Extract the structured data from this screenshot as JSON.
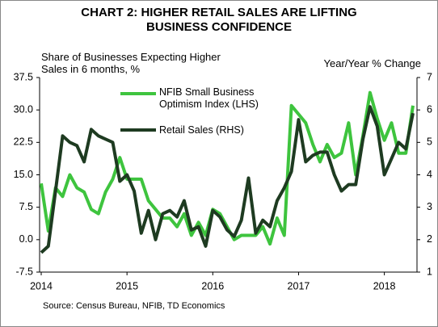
{
  "chart_data": {
    "type": "line",
    "title": "CHART 2: HIGHER RETAIL SALES ARE LIFTING BUSINESS CONFIDENCE",
    "y_label": "Share of Businesses Expecting Higher Sales in 6 months, %",
    "y2_label": "Year/Year % Change",
    "source": "Source: Census Bureau, NFIB, TD Economics",
    "categories": [
      "2014",
      null,
      null,
      null,
      null,
      null,
      null,
      null,
      null,
      null,
      null,
      null,
      "2015",
      null,
      null,
      null,
      null,
      null,
      null,
      null,
      null,
      null,
      null,
      null,
      "2016",
      null,
      null,
      null,
      null,
      null,
      null,
      null,
      null,
      null,
      null,
      null,
      "2017",
      null,
      null,
      null,
      null,
      null,
      null,
      null,
      null,
      null,
      null,
      null,
      "2018",
      null,
      null,
      null,
      null
    ],
    "series": [
      {
        "name": "NFIB Small Business Optimism Index (LHS)",
        "color": "#3ec43e",
        "axis": "y",
        "values": [
          13,
          2,
          12,
          10,
          15,
          12,
          11,
          7,
          6,
          11,
          14,
          19,
          14,
          14,
          14,
          9,
          7,
          5,
          5,
          3,
          6,
          1,
          4,
          1,
          7,
          6,
          3,
          0,
          1,
          1,
          1,
          3,
          -1,
          5,
          1,
          31,
          29,
          27,
          22,
          18,
          22,
          19,
          20,
          27,
          15,
          24,
          34,
          28,
          23,
          27,
          20,
          20,
          31
        ]
      },
      {
        "name": "Retail Sales (RHS)",
        "color": "#1e3b21",
        "axis": "y2",
        "values": [
          1.6,
          1.8,
          3.5,
          5.2,
          5.0,
          4.9,
          4.4,
          5.4,
          5.2,
          5.1,
          5.0,
          3.8,
          4.0,
          3.5,
          2.2,
          2.9,
          2.0,
          2.8,
          2.9,
          2.7,
          3.2,
          2.3,
          2.4,
          1.8,
          2.9,
          2.7,
          2.3,
          2.1,
          2.6,
          3.9,
          2.2,
          2.6,
          2.4,
          3.2,
          3.6,
          4.1,
          5.7,
          4.4,
          4.6,
          4.7,
          4.7,
          4.0,
          3.5,
          3.7,
          3.7,
          5.1,
          6.1,
          5.5,
          4.0,
          4.5,
          5.0,
          4.8,
          5.9
        ]
      }
    ],
    "ylim": [
      -7.5,
      37.5
    ],
    "yticks": [
      -7.5,
      {
        "value": 0,
        "label": "0.0"
      },
      7.5,
      {
        "value": 15,
        "label": "15.0"
      },
      22.5,
      {
        "value": 30,
        "label": "30.0"
      },
      37.5
    ],
    "y2lim": [
      1,
      7
    ],
    "y2ticks": [
      1,
      2,
      3,
      4,
      5,
      6,
      7
    ],
    "grid": false
  }
}
